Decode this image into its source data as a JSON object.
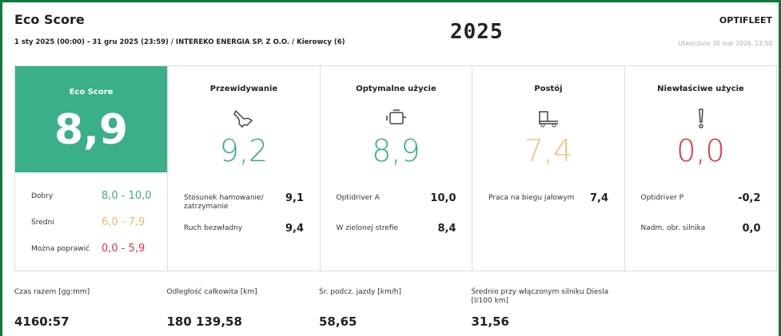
{
  "header": {
    "title": "Eco Score",
    "brand": "OPTIFLEET",
    "year": "2025",
    "subtitle": "1 sty 2025 (00:00) - 31 gru 2025 (23:59) / INTEREKO ENERGIA SP. Z O.O. / Kierowcy (6)",
    "created": "Utworzono 30 mar 2026, 12:50"
  },
  "score": {
    "label": "Eco Score",
    "value": "8,9",
    "color": "#3aaf8a",
    "legend": [
      {
        "label": "Dobry",
        "range": "8,0 - 10,0",
        "color": "#3aaf8a"
      },
      {
        "label": "Średni",
        "range": "6,0 - 7,9",
        "color": "#f2b869"
      },
      {
        "label": "Można poprawić",
        "range": "0,0 - 5,9",
        "color": "#d9363e"
      }
    ]
  },
  "categories": [
    {
      "title": "Przewidywanie",
      "value": "9,2",
      "color": "#3aaf8a",
      "icon": "hand",
      "items": [
        {
          "label": "Stosunek hamowanie/ zatrzymanie",
          "value": "9,1"
        },
        {
          "label": "Ruch bezwładny",
          "value": "9,4"
        }
      ]
    },
    {
      "title": "Optymalne użycie",
      "value": "8,9",
      "color": "#3aaf8a",
      "icon": "engine",
      "items": [
        {
          "label": "Optidriver A",
          "value": "10,0"
        },
        {
          "label": "W zielonej strefie",
          "value": "8,4"
        }
      ]
    },
    {
      "title": "Postój",
      "value": "7,4",
      "color": "#f5c37e",
      "icon": "truck",
      "items": [
        {
          "label": "Praca na biegu jałowym",
          "value": "7,4"
        }
      ]
    },
    {
      "title": "Niewłaściwe użycie",
      "value": "0,0",
      "color": "#d9363e",
      "icon": "warn",
      "items": [
        {
          "label": "Optidriver P",
          "value": "-0,2"
        },
        {
          "label": "Nadm. obr. silnika",
          "value": "0,0"
        }
      ]
    }
  ],
  "stats": [
    {
      "label": "Czas razem [gg:mm]",
      "value": "4160:57"
    },
    {
      "label": "Odległość całkowita [km]",
      "value": "180 139,58"
    },
    {
      "label": "Śr. podcz. jazdy [km/h]",
      "value": "58,65"
    },
    {
      "label": "Średnio przy włączonym silniku Diesla [l/100 km]",
      "value": "31,56"
    }
  ]
}
